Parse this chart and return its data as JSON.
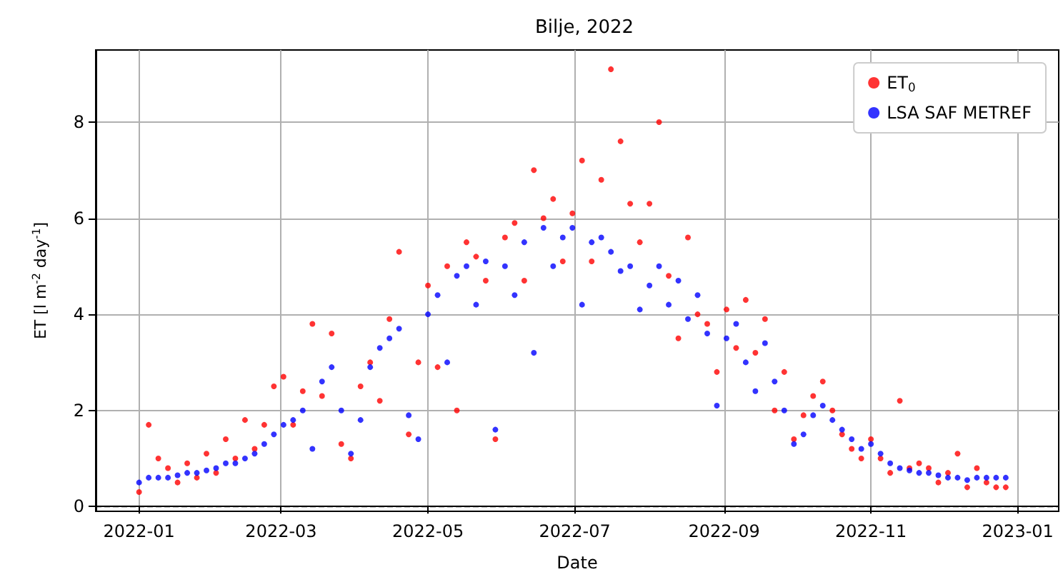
{
  "chart_data": {
    "type": "scatter",
    "title": "Bilje, 2022",
    "xlabel": "Date",
    "ylabel": "ET [l m$^{-2}$ day$^{-1}$]",
    "x": [
      "2022-01-01",
      "2022-01-05",
      "2022-01-09",
      "2022-01-13",
      "2022-01-17",
      "2022-01-21",
      "2022-01-25",
      "2022-01-29",
      "2022-02-02",
      "2022-02-06",
      "2022-02-10",
      "2022-02-14",
      "2022-02-18",
      "2022-02-22",
      "2022-02-26",
      "2022-03-02",
      "2022-03-06",
      "2022-03-10",
      "2022-03-14",
      "2022-03-18",
      "2022-03-22",
      "2022-03-26",
      "2022-03-30",
      "2022-04-03",
      "2022-04-07",
      "2022-04-11",
      "2022-04-15",
      "2022-04-19",
      "2022-04-23",
      "2022-04-27",
      "2022-05-01",
      "2022-05-05",
      "2022-05-09",
      "2022-05-13",
      "2022-05-17",
      "2022-05-21",
      "2022-05-25",
      "2022-05-29",
      "2022-06-02",
      "2022-06-06",
      "2022-06-10",
      "2022-06-14",
      "2022-06-18",
      "2022-06-22",
      "2022-06-26",
      "2022-06-30",
      "2022-07-04",
      "2022-07-08",
      "2022-07-12",
      "2022-07-16",
      "2022-07-20",
      "2022-07-24",
      "2022-07-28",
      "2022-08-01",
      "2022-08-05",
      "2022-08-09",
      "2022-08-13",
      "2022-08-17",
      "2022-08-21",
      "2022-08-25",
      "2022-08-29",
      "2022-09-02",
      "2022-09-06",
      "2022-09-10",
      "2022-09-14",
      "2022-09-18",
      "2022-09-22",
      "2022-09-26",
      "2022-09-30",
      "2022-10-04",
      "2022-10-08",
      "2022-10-12",
      "2022-10-16",
      "2022-10-20",
      "2022-10-24",
      "2022-10-28",
      "2022-11-01",
      "2022-11-05",
      "2022-11-09",
      "2022-11-13",
      "2022-11-17",
      "2022-11-21",
      "2022-11-25",
      "2022-11-29",
      "2022-12-03",
      "2022-12-07",
      "2022-12-11",
      "2022-12-15",
      "2022-12-19",
      "2022-12-23",
      "2022-12-27"
    ],
    "series": [
      {
        "name": "ET$_{0}$",
        "color": "#ff0000",
        "values": [
          0.3,
          1.7,
          1.0,
          0.8,
          0.5,
          0.9,
          0.6,
          1.1,
          0.7,
          1.4,
          1.0,
          1.8,
          1.2,
          1.7,
          2.5,
          2.7,
          1.7,
          2.4,
          3.8,
          2.3,
          3.6,
          1.3,
          1.0,
          2.5,
          3.0,
          2.2,
          3.9,
          5.3,
          1.5,
          3.0,
          4.6,
          2.9,
          5.0,
          2.0,
          5.5,
          5.2,
          4.7,
          1.4,
          5.6,
          5.9,
          4.7,
          7.0,
          6.0,
          6.4,
          5.1,
          6.1,
          7.2,
          5.1,
          6.8,
          9.1,
          7.6,
          6.3,
          5.5,
          6.3,
          8.0,
          4.8,
          3.5,
          5.6,
          4.0,
          3.8,
          2.8,
          4.1,
          3.3,
          4.3,
          3.2,
          3.9,
          2.0,
          2.8,
          1.4,
          1.9,
          2.3,
          2.6,
          2.0,
          1.5,
          1.2,
          1.0,
          1.4,
          1.0,
          0.7,
          2.2,
          0.8,
          0.9,
          0.8,
          0.5,
          0.7,
          1.1,
          0.4,
          0.8,
          0.5,
          0.4,
          0.4
        ]
      },
      {
        "name": "LSA SAF METREF",
        "color": "#0000ff",
        "values": [
          0.5,
          0.6,
          0.6,
          0.6,
          0.65,
          0.7,
          0.7,
          0.75,
          0.8,
          0.9,
          0.9,
          1.0,
          1.1,
          1.3,
          1.5,
          1.7,
          1.8,
          2.0,
          1.2,
          2.6,
          2.9,
          2.0,
          1.1,
          1.8,
          2.9,
          3.3,
          3.5,
          3.7,
          1.9,
          1.4,
          4.0,
          4.4,
          3.0,
          4.8,
          5.0,
          4.2,
          5.1,
          1.6,
          5.0,
          4.4,
          5.5,
          3.2,
          5.8,
          5.0,
          5.6,
          5.8,
          4.2,
          5.5,
          5.6,
          5.3,
          4.9,
          5.0,
          4.1,
          4.6,
          5.0,
          4.2,
          4.7,
          3.9,
          4.4,
          3.6,
          2.1,
          3.5,
          3.8,
          3.0,
          2.4,
          3.4,
          2.6,
          2.0,
          1.3,
          1.5,
          1.9,
          2.1,
          1.8,
          1.6,
          1.4,
          1.2,
          1.3,
          1.1,
          0.9,
          0.8,
          0.75,
          0.7,
          0.7,
          0.65,
          0.6,
          0.6,
          0.55,
          0.6,
          0.6,
          0.6,
          0.6
        ]
      }
    ],
    "xlim": [
      "2021-12-14",
      "2023-01-18"
    ],
    "xticks": [
      "2022-01",
      "2022-03",
      "2022-05",
      "2022-07",
      "2022-09",
      "2022-11",
      "2023-01"
    ],
    "ylim": [
      -0.1,
      9.5
    ],
    "yticks": [
      0,
      2,
      4,
      6,
      8
    ],
    "ref_lines": [
      {
        "axis": "y",
        "value": 0,
        "color": "#000000",
        "line_style": "dashed"
      }
    ],
    "grid": true,
    "legend": "top right",
    "marker": "circle"
  }
}
